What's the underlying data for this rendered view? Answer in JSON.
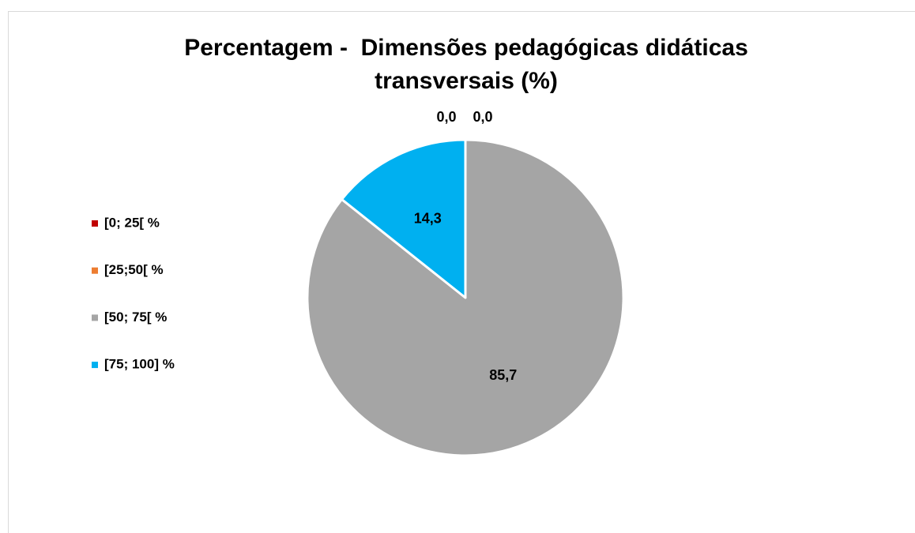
{
  "chart_data": {
    "type": "pie",
    "title": "Percentagem -  Dimensões pedagógicas didáticas transversais (%)",
    "categories": [
      "[0; 25[ %",
      "[25;50[ %",
      "[50; 75[ %",
      "[75; 100] %"
    ],
    "values": [
      0.0,
      0.0,
      85.7,
      14.3
    ],
    "value_labels": [
      "0,0",
      "0,0",
      "85,7",
      "14,3"
    ],
    "colors": [
      "#c00000",
      "#ed7d31",
      "#a5a5a5",
      "#00b0f0"
    ],
    "legend": "left"
  }
}
